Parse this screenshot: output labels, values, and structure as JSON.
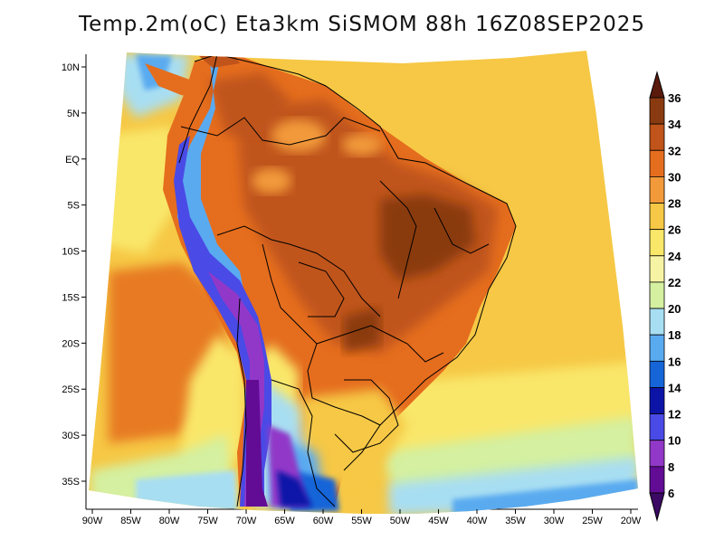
{
  "title": "Temp.2m(oC) Eta3km SiSMOM 88h 16Z08SEP2025",
  "map": {
    "lon_labels": [
      "90W",
      "85W",
      "80W",
      "75W",
      "70W",
      "65W",
      "60W",
      "55W",
      "50W",
      "45W",
      "40W",
      "35W",
      "30W",
      "25W",
      "20W"
    ],
    "lat_labels": [
      "10N",
      "5N",
      "EQ",
      "5S",
      "10S",
      "15S",
      "20S",
      "25S",
      "30S",
      "35S"
    ]
  },
  "colorbar": {
    "labels": [
      "36",
      "34",
      "32",
      "30",
      "28",
      "26",
      "24",
      "22",
      "20",
      "18",
      "16",
      "14",
      "12",
      "10",
      "8",
      "6"
    ],
    "colors": [
      "#5a1a0c",
      "#8a3a10",
      "#c0541a",
      "#e56d1e",
      "#f29a3a",
      "#f6c845",
      "#f9e76a",
      "#f6f4a4",
      "#d4f0a0",
      "#a8def2",
      "#5aaaf0",
      "#1565d8",
      "#0c14a8",
      "#4a4ae6",
      "#9238c8",
      "#620c96",
      "#3c0a64"
    ]
  }
}
